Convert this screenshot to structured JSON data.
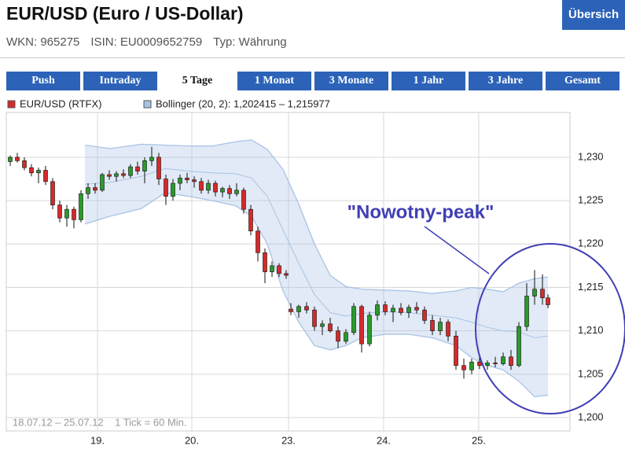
{
  "header": {
    "title": "EUR/USD (Euro / US-Dollar)",
    "button": "Übersich",
    "wkn": "WKN: 965275",
    "isin": "ISIN: EU0009652759",
    "typ": "Typ: Währung"
  },
  "tabs": [
    "Push",
    "Intraday",
    "5 Tage",
    "1 Monat",
    "3 Monate",
    "1 Jahr",
    "3 Jahre",
    "Gesamt"
  ],
  "active_tab": 2,
  "chart_data": {
    "type": "candlestick",
    "series": [
      {
        "name": "EUR/USD (RTFX)",
        "color": "#d42a2a",
        "up_color": "#2a9a2a",
        "x": [
          0.6,
          2.4,
          4.2,
          6,
          7.8,
          9.6,
          11.4,
          13.2,
          15,
          16.8,
          18.6,
          20.4,
          22.2,
          24,
          25.8,
          27.6,
          29.4,
          31.2,
          33,
          34.8,
          36.6,
          38.4,
          40.2,
          42,
          43.8,
          45.6,
          47.4,
          49.2,
          51,
          52.8,
          54.6,
          56.4,
          58.2,
          60,
          61.8,
          63.6,
          65.4,
          67.2,
          69,
          70.8,
          72,
          74,
          76,
          78,
          80,
          82,
          84,
          86,
          88,
          90,
          92,
          94,
          96,
          98,
          100,
          102,
          104,
          106,
          108,
          110,
          112,
          114,
          116,
          118,
          120,
          122,
          124,
          126,
          128,
          130,
          132,
          134,
          136,
          137.4
        ],
        "open": [
          1.2295,
          1.23,
          1.2296,
          1.2288,
          1.2282,
          1.2285,
          1.2272,
          1.2245,
          1.223,
          1.224,
          1.2228,
          1.2258,
          1.2265,
          1.2262,
          1.228,
          1.2278,
          1.2281,
          1.2279,
          1.2289,
          1.2284,
          1.2296,
          1.23,
          1.2275,
          1.2255,
          1.227,
          1.2276,
          1.2274,
          1.2272,
          1.2262,
          1.227,
          1.226,
          1.2264,
          1.2258,
          1.2262,
          1.224,
          1.2215,
          1.219,
          1.2168,
          1.2175,
          1.2166,
          1.2125,
          1.2122,
          1.2128,
          1.2124,
          1.2105,
          1.2108,
          1.21,
          1.2088,
          1.2098,
          1.2128,
          1.2085,
          1.2118,
          1.213,
          1.2122,
          1.2126,
          1.2121,
          1.2127,
          1.2124,
          1.2112,
          1.21,
          1.211,
          1.2094,
          1.206,
          1.2055,
          1.2064,
          1.206,
          1.2063,
          1.2062,
          1.207,
          1.206,
          1.2105,
          1.214,
          1.2148,
          1.2138
        ],
        "high": [
          1.2302,
          1.2305,
          1.23,
          1.2292,
          1.2288,
          1.229,
          1.2276,
          1.225,
          1.2245,
          1.2243,
          1.2262,
          1.227,
          1.227,
          1.2282,
          1.2285,
          1.2284,
          1.2286,
          1.2292,
          1.2295,
          1.23,
          1.2312,
          1.2305,
          1.228,
          1.2275,
          1.228,
          1.2282,
          1.2278,
          1.2276,
          1.2274,
          1.2273,
          1.2266,
          1.2268,
          1.227,
          1.2265,
          1.2245,
          1.222,
          1.2195,
          1.218,
          1.2178,
          1.217,
          1.2132,
          1.213,
          1.2133,
          1.2128,
          1.2112,
          1.2115,
          1.2105,
          1.2102,
          1.2132,
          1.213,
          1.2122,
          1.2135,
          1.2134,
          1.213,
          1.2132,
          1.213,
          1.2133,
          1.2128,
          1.2118,
          1.2115,
          1.2113,
          1.21,
          1.2068,
          1.2068,
          1.207,
          1.2066,
          1.207,
          1.2075,
          1.2078,
          1.211,
          1.2155,
          1.217,
          1.2165,
          1.2142
        ],
        "low": [
          1.229,
          1.2294,
          1.2285,
          1.2278,
          1.227,
          1.2268,
          1.224,
          1.2225,
          1.222,
          1.2218,
          1.2225,
          1.2252,
          1.2258,
          1.226,
          1.2274,
          1.2272,
          1.2276,
          1.2276,
          1.228,
          1.227,
          1.229,
          1.2268,
          1.2245,
          1.225,
          1.2262,
          1.227,
          1.2265,
          1.2258,
          1.2258,
          1.2255,
          1.2254,
          1.2252,
          1.2255,
          1.2235,
          1.221,
          1.218,
          1.2155,
          1.2162,
          1.2162,
          1.216,
          1.2118,
          1.2115,
          1.212,
          1.21,
          1.2095,
          1.2098,
          1.208,
          1.2085,
          1.2095,
          1.2075,
          1.2082,
          1.2112,
          1.2118,
          1.211,
          1.2118,
          1.2115,
          1.212,
          1.2108,
          1.2095,
          1.2095,
          1.2088,
          1.2055,
          1.2045,
          1.205,
          1.2056,
          1.2055,
          1.2058,
          1.206,
          1.2055,
          1.2058,
          1.21,
          1.213,
          1.213,
          1.2126
        ],
        "close": [
          1.23,
          1.2296,
          1.2288,
          1.2282,
          1.2285,
          1.2272,
          1.2245,
          1.223,
          1.224,
          1.2228,
          1.2258,
          1.2265,
          1.2262,
          1.228,
          1.2278,
          1.2281,
          1.2279,
          1.2289,
          1.2284,
          1.2296,
          1.23,
          1.2275,
          1.2255,
          1.227,
          1.2276,
          1.2274,
          1.2272,
          1.2262,
          1.227,
          1.226,
          1.2264,
          1.2258,
          1.2262,
          1.224,
          1.2215,
          1.219,
          1.2168,
          1.2175,
          1.2166,
          1.2164,
          1.2122,
          1.2128,
          1.2124,
          1.2105,
          1.2108,
          1.21,
          1.2088,
          1.2098,
          1.2128,
          1.2085,
          1.2118,
          1.213,
          1.2122,
          1.2126,
          1.2121,
          1.2127,
          1.2124,
          1.2112,
          1.21,
          1.211,
          1.2094,
          1.206,
          1.2055,
          1.2064,
          1.206,
          1.2063,
          1.2062,
          1.207,
          1.206,
          1.2105,
          1.214,
          1.2148,
          1.2138,
          1.213
        ]
      }
    ],
    "bollinger": {
      "name": "Bollinger (20, 2): 1,202415 – 1,215977",
      "color": "#a9c3e6",
      "x": [
        19.6,
        26,
        34,
        40,
        46,
        52,
        58,
        62,
        66,
        70,
        74,
        78,
        82,
        86,
        90,
        96,
        102,
        108,
        114,
        118,
        122,
        126,
        130,
        134,
        137.4
      ],
      "upper": [
        1.2314,
        1.231,
        1.2315,
        1.2314,
        1.2313,
        1.2313,
        1.2318,
        1.232,
        1.2309,
        1.2286,
        1.2246,
        1.22,
        1.2164,
        1.2151,
        1.2148,
        1.2147,
        1.2146,
        1.2143,
        1.2146,
        1.215,
        1.2148,
        1.2145,
        1.2155,
        1.216,
        1.2162
      ],
      "middle": [
        1.2269,
        1.2271,
        1.2278,
        1.2287,
        1.2284,
        1.2282,
        1.2281,
        1.2276,
        1.2255,
        1.2216,
        1.2178,
        1.2142,
        1.2121,
        1.2117,
        1.212,
        1.2122,
        1.2121,
        1.2118,
        1.2115,
        1.211,
        1.2104,
        1.21,
        1.2099,
        1.2092,
        1.2094
      ],
      "lower": [
        1.2223,
        1.2232,
        1.2241,
        1.2259,
        1.2255,
        1.225,
        1.2244,
        1.2232,
        1.22,
        1.2146,
        1.211,
        1.2083,
        1.2078,
        1.2083,
        1.2092,
        1.2096,
        1.2096,
        1.2092,
        1.2083,
        1.2069,
        1.206,
        1.2055,
        1.2042,
        1.2024,
        1.2026
      ]
    },
    "annotation": "\"Nowotny-peak\"",
    "annotation_color": "#3f3fb5",
    "footnote": "18.07.12 – 25.07.12    1 Tick = 60 Min.",
    "xlim": [
      -0.4,
      143
    ],
    "xticks": [
      {
        "value": 22.8,
        "label": "19."
      },
      {
        "value": 46.8,
        "label": "20."
      },
      {
        "value": 71.4,
        "label": "23."
      },
      {
        "value": 95.6,
        "label": "24."
      },
      {
        "value": 119.8,
        "label": "25."
      }
    ],
    "ylim": [
      1.19846,
      1.23516
    ],
    "yticks": [
      {
        "value": 1.2,
        "label": "1,200"
      },
      {
        "value": 1.205,
        "label": "1,205"
      },
      {
        "value": 1.21,
        "label": "1,210"
      },
      {
        "value": 1.215,
        "label": "1,215"
      },
      {
        "value": 1.22,
        "label": "1,220"
      },
      {
        "value": 1.225,
        "label": "1,225"
      },
      {
        "value": 1.23,
        "label": "1,230"
      }
    ],
    "grid": true
  }
}
